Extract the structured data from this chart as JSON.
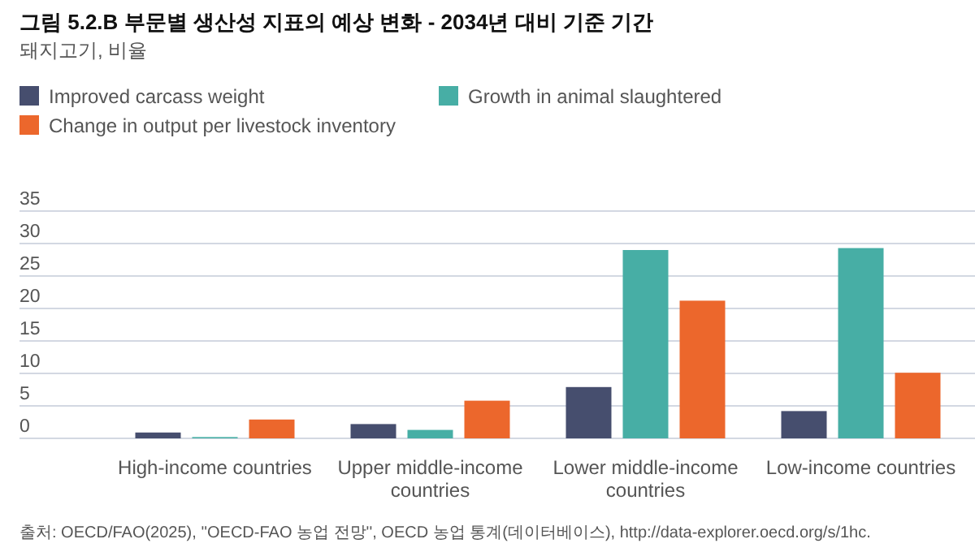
{
  "chart_data": {
    "type": "bar",
    "title": "그림 5.2.B 부문별 생산성 지표의 예상 변화 - 2034년 대비 기준 기간",
    "subtitle": "돼지고기, 비율",
    "categories": [
      "High-income countries",
      "Upper middle-income countries",
      "Lower middle-income countries",
      "Low-income countries"
    ],
    "series": [
      {
        "name": "Improved carcass weight",
        "color": "#464e6e",
        "values": [
          0.9,
          2.2,
          7.9,
          4.2
        ]
      },
      {
        "name": "Growth in animal slaughtered",
        "color": "#47aea5",
        "values": [
          0.2,
          1.3,
          29.0,
          29.3
        ]
      },
      {
        "name": "Change in output per livestock inventory",
        "color": "#ec672c",
        "values": [
          2.9,
          5.8,
          21.2,
          10.1
        ]
      }
    ],
    "ylim": [
      0,
      35
    ],
    "yticks": [
      0,
      5,
      10,
      15,
      20,
      25,
      30,
      35
    ],
    "grid": "y",
    "legend": "top",
    "annotations": [
      "출처: OECD/FAO(2025), ''OECD-FAO 농업 전망'', OECD 농업 통계(데이터베이스), http://data-explorer.oecd.org/s/1hc."
    ]
  }
}
